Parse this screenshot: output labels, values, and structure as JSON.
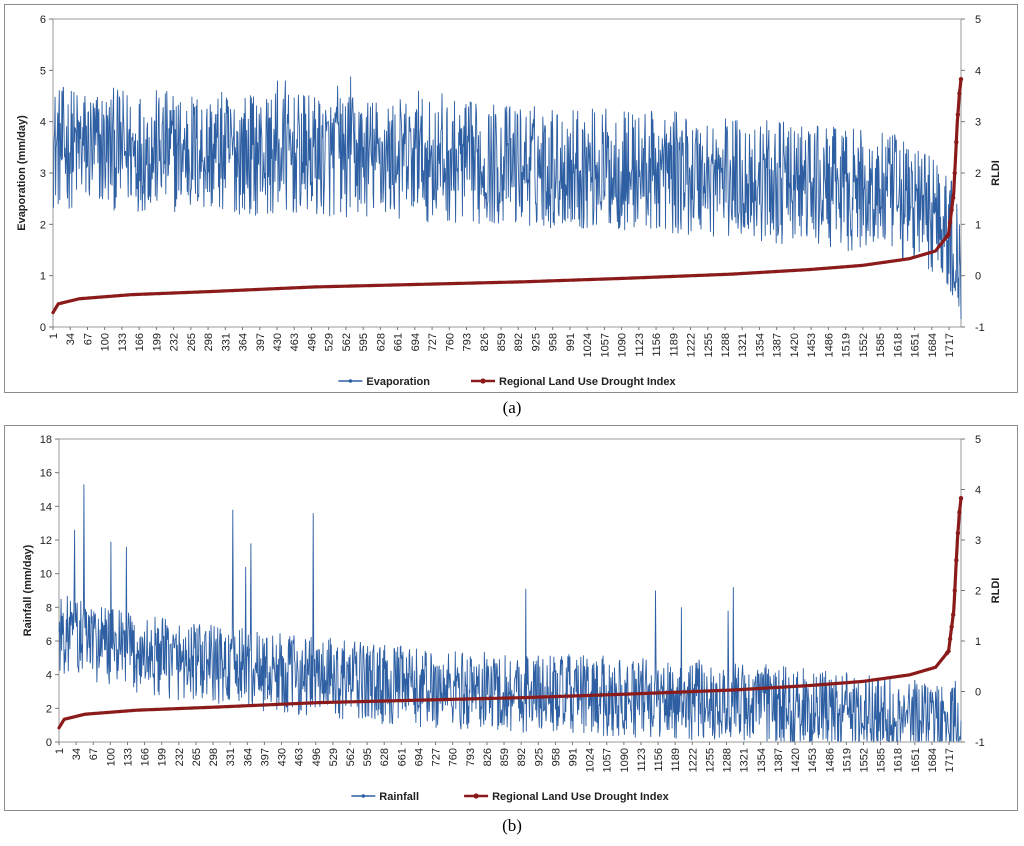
{
  "figure_labels": {
    "a": "(a)",
    "b": "(b)"
  },
  "chart_data": [
    {
      "type": "line",
      "panel": "a",
      "xlabel": "",
      "ylabel": "Evaporation (mm/day)",
      "y2label": "RLDI",
      "ylim": [
        0,
        6
      ],
      "y2lim": [
        -1,
        5
      ],
      "yticks": [
        0,
        1,
        2,
        3,
        4,
        5,
        6
      ],
      "y2ticks": [
        -1,
        0,
        1,
        2,
        3,
        4,
        5
      ],
      "x_tick_labels": [
        "1",
        "34",
        "67",
        "100",
        "133",
        "166",
        "199",
        "232",
        "265",
        "298",
        "331",
        "364",
        "397",
        "430",
        "463",
        "496",
        "529",
        "562",
        "595",
        "628",
        "661",
        "694",
        "727",
        "760",
        "793",
        "826",
        "859",
        "892",
        "925",
        "958",
        "991",
        "1024",
        "1057",
        "1090",
        "1123",
        "1156",
        "1189",
        "1222",
        "1255",
        "1288",
        "1321",
        "1354",
        "1387",
        "1420",
        "1453",
        "1486",
        "1519",
        "1552",
        "1585",
        "1618",
        "1651",
        "1684",
        "1717"
      ],
      "n_points": 1740,
      "series": [
        {
          "name": "Evaporation",
          "axis": "left",
          "color": "#2e5fa3",
          "description": "noisy daily evaporation",
          "level_profile": [
            [
              0,
              3.5
            ],
            [
              600,
              3.3
            ],
            [
              1200,
              3.0
            ],
            [
              1600,
              2.6
            ],
            [
              1700,
              2.2
            ],
            [
              1740,
              1.2
            ]
          ],
          "noise_range": [
            -1.2,
            1.2
          ],
          "spikes": [
            [
              430,
              4.8
            ],
            [
              445,
              4.8
            ],
            [
              570,
              4.88
            ],
            [
              545,
              4.7
            ],
            [
              700,
              4.6
            ],
            [
              745,
              4.55
            ],
            [
              1735,
              0.4
            ],
            [
              1728,
              0.7
            ]
          ]
        },
        {
          "name": "Regional Land Use Drought Index",
          "axis": "right",
          "color": "#8b1a1a",
          "description": "sorted RLDI, ascending",
          "profile": [
            [
              0,
              -0.72
            ],
            [
              10,
              -0.55
            ],
            [
              50,
              -0.45
            ],
            [
              150,
              -0.37
            ],
            [
              300,
              -0.31
            ],
            [
              500,
              -0.22
            ],
            [
              700,
              -0.17
            ],
            [
              900,
              -0.12
            ],
            [
              1100,
              -0.05
            ],
            [
              1300,
              0.03
            ],
            [
              1450,
              0.12
            ],
            [
              1550,
              0.2
            ],
            [
              1640,
              0.33
            ],
            [
              1690,
              0.48
            ],
            [
              1715,
              0.8
            ],
            [
              1725,
              1.6
            ],
            [
              1732,
              3.0
            ],
            [
              1736,
              3.55
            ],
            [
              1740,
              3.92
            ]
          ]
        }
      ],
      "legend": [
        "Evaporation",
        "Regional Land Use Drought Index"
      ],
      "legend_position": "bottom"
    },
    {
      "type": "line",
      "panel": "b",
      "xlabel": "",
      "ylabel": "Rainfall (mm/day)",
      "y2label": "RLDI",
      "ylim": [
        0,
        18
      ],
      "y2lim": [
        -1,
        5
      ],
      "yticks": [
        0,
        2,
        4,
        6,
        8,
        10,
        12,
        14,
        16,
        18
      ],
      "y2ticks": [
        -1,
        0,
        1,
        2,
        3,
        4,
        5
      ],
      "x_tick_labels": [
        "1",
        "34",
        "67",
        "100",
        "133",
        "166",
        "199",
        "232",
        "265",
        "298",
        "331",
        "364",
        "397",
        "430",
        "463",
        "496",
        "529",
        "562",
        "595",
        "628",
        "661",
        "694",
        "727",
        "760",
        "793",
        "826",
        "859",
        "892",
        "925",
        "958",
        "991",
        "1024",
        "1057",
        "1090",
        "1123",
        "1156",
        "1189",
        "1222",
        "1255",
        "1288",
        "1321",
        "1354",
        "1387",
        "1420",
        "1453",
        "1486",
        "1519",
        "1552",
        "1585",
        "1618",
        "1651",
        "1684",
        "1717"
      ],
      "n_points": 1740,
      "series": [
        {
          "name": "Rainfall",
          "axis": "left",
          "color": "#2e5fa3",
          "description": "noisy daily rainfall",
          "level_profile": [
            [
              0,
              6.5
            ],
            [
              150,
              5.2
            ],
            [
              400,
              4.2
            ],
            [
              700,
              3.2
            ],
            [
              1000,
              2.8
            ],
            [
              1300,
              2.4
            ],
            [
              1500,
              1.8
            ],
            [
              1740,
              1.2
            ]
          ],
          "noise_range": [
            -2.4,
            2.4
          ],
          "spikes": [
            [
              48,
              15.3
            ],
            [
              30,
              12.6
            ],
            [
              100,
              11.9
            ],
            [
              130,
              11.6
            ],
            [
              335,
              13.8
            ],
            [
              370,
              11.8
            ],
            [
              490,
              13.6
            ],
            [
              360,
              10.4
            ],
            [
              1150,
              9.0
            ],
            [
              1300,
              9.2
            ],
            [
              900,
              9.1
            ],
            [
              1290,
              7.8
            ],
            [
              1200,
              8.0
            ]
          ]
        },
        {
          "name": "Regional Land Use Drought Index",
          "axis": "right",
          "color": "#8b1a1a",
          "description": "sorted RLDI, ascending",
          "profile": [
            [
              0,
              -0.72
            ],
            [
              10,
              -0.55
            ],
            [
              50,
              -0.45
            ],
            [
              150,
              -0.37
            ],
            [
              300,
              -0.31
            ],
            [
              500,
              -0.22
            ],
            [
              700,
              -0.17
            ],
            [
              900,
              -0.12
            ],
            [
              1100,
              -0.05
            ],
            [
              1300,
              0.03
            ],
            [
              1450,
              0.12
            ],
            [
              1550,
              0.2
            ],
            [
              1640,
              0.33
            ],
            [
              1690,
              0.48
            ],
            [
              1715,
              0.8
            ],
            [
              1725,
              1.6
            ],
            [
              1732,
              3.0
            ],
            [
              1736,
              3.55
            ],
            [
              1740,
              3.92
            ]
          ]
        }
      ],
      "legend": [
        "Rainfall",
        "Regional Land Use Drought Index"
      ],
      "legend_position": "bottom"
    }
  ]
}
